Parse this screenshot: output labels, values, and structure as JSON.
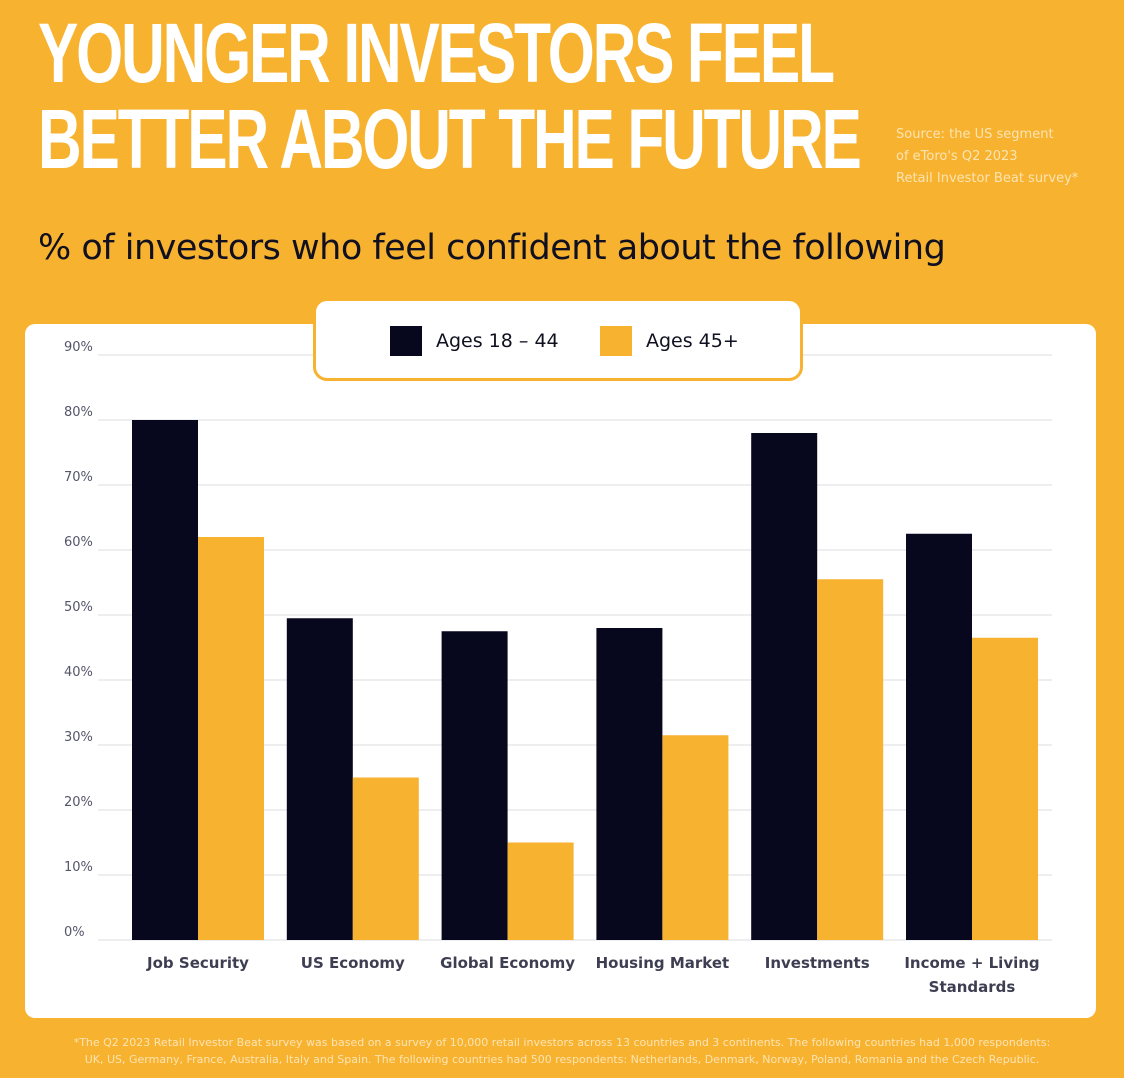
{
  "header": {
    "title_lines": [
      "YOUNGER INVESTORS FEEL",
      "BETTER ABOUT THE FUTURE"
    ],
    "source_lines": [
      "Source: the US segment",
      "of eToro's Q2 2023",
      "Retail Investor Beat survey*"
    ]
  },
  "chart_data": {
    "type": "bar",
    "title": "YOUNGER INVESTORS FEEL BETTER ABOUT THE FUTURE",
    "subtitle": "% of investors who feel confident about the following",
    "categories": [
      "Job Security",
      "US Economy",
      "Global Economy",
      "Housing Market",
      "Investments",
      "Income + Living Standards"
    ],
    "category_label_lines": [
      [
        "Job Security"
      ],
      [
        "US Economy"
      ],
      [
        "Global Economy"
      ],
      [
        "Housing Market"
      ],
      [
        "Investments"
      ],
      [
        "Income + Living",
        "Standards"
      ]
    ],
    "series": [
      {
        "name": "Ages 18 – 44",
        "color": "#07071E",
        "values": [
          80,
          49.5,
          47.5,
          48,
          78,
          62.5
        ]
      },
      {
        "name": "Ages 45+",
        "color": "#F7B230",
        "values": [
          62,
          25,
          15,
          31.5,
          55.5,
          46.5
        ]
      }
    ],
    "y_ticks": [
      "0%",
      "10%",
      "20%",
      "30%",
      "40%",
      "50%",
      "60%",
      "70%",
      "80%",
      "90%"
    ],
    "ylim": [
      0,
      90
    ],
    "grid": true,
    "legend_position": "top-center"
  },
  "footnote": {
    "lines": [
      "*The Q2 2023 Retail Investor Beat survey was based on a survey of 10,000 retail investors across 13 countries and 3 continents. The following countries had 1,000 respondents:",
      "UK, US, Germany, France, Australia, Italy and Spain. The following countries had 500 respondents: Netherlands, Denmark, Norway, Poland, Romania and the Czech Republic."
    ]
  }
}
